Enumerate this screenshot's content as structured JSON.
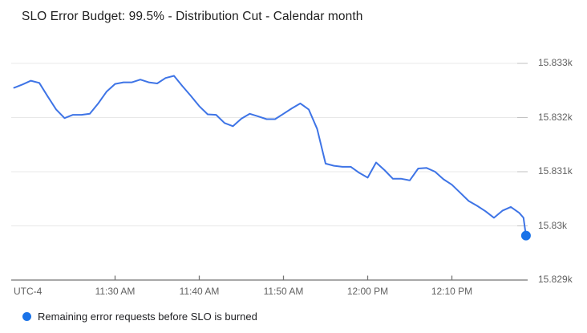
{
  "header": {
    "title": "SLO Error Budget: 99.5% - Distribution Cut - Calendar month"
  },
  "legend": {
    "items": [
      {
        "label": "Remaining error requests before SLO is burned",
        "color": "#1a73e8"
      }
    ]
  },
  "colors": {
    "line": "#3e74e6",
    "end_dot": "#1a73e8",
    "gridline": "#e8e8e8",
    "grid_tick_stub": "#c2c2c2",
    "axis_line": "#757575",
    "axis_tick": "#757575"
  },
  "chart_data": {
    "type": "line",
    "title": "SLO Error Budget: 99.5% - Distribution Cut - Calendar month",
    "x_axis": {
      "timezone_label": "UTC-4",
      "start_time": "11:18 AM",
      "end_time": "12:19 PM",
      "unit": "minutes_after_start",
      "grid": false,
      "ticks": [
        {
          "label": "11:30 AM",
          "minute": 12
        },
        {
          "label": "11:40 AM",
          "minute": 22
        },
        {
          "label": "11:50 AM",
          "minute": 32
        },
        {
          "label": "12:00 PM",
          "minute": 42
        },
        {
          "label": "12:10 PM",
          "minute": 52
        }
      ]
    },
    "y_axis": {
      "min": 15829,
      "max": 15833.25,
      "grid": true,
      "ticks": [
        {
          "label": "15.833k",
          "value": 15833
        },
        {
          "label": "15.832k",
          "value": 15832
        },
        {
          "label": "15.831k",
          "value": 15831
        },
        {
          "label": "15.83k",
          "value": 15830
        },
        {
          "label": "15.829k",
          "value": 15829
        }
      ]
    },
    "series": [
      {
        "name": "Remaining error requests before SLO is burned",
        "end_dot": true,
        "x_minutes": [
          0,
          1,
          2,
          3,
          4,
          5,
          6,
          7,
          8,
          9,
          10,
          11,
          12,
          13,
          14,
          15,
          16,
          17,
          18,
          19,
          20,
          21,
          22,
          23,
          24,
          25,
          26,
          27,
          28,
          29,
          30,
          31,
          32,
          33,
          34,
          35,
          36,
          37,
          38,
          39,
          40,
          41,
          42,
          43,
          44,
          45,
          46,
          47,
          48,
          49,
          50,
          51,
          52,
          53,
          54,
          55,
          56,
          57,
          58,
          59,
          60,
          60.5,
          60.8
        ],
        "values": [
          15832.55,
          15832.61,
          15832.68,
          15832.64,
          15832.39,
          15832.15,
          15831.99,
          15832.05,
          15832.05,
          15832.07,
          15832.26,
          15832.48,
          15832.62,
          15832.65,
          15832.65,
          15832.7,
          15832.65,
          15832.63,
          15832.73,
          15832.77,
          15832.58,
          15832.4,
          15832.21,
          15832.06,
          15832.05,
          15831.9,
          15831.84,
          15831.98,
          15832.07,
          15832.02,
          15831.97,
          15831.97,
          15832.07,
          15832.17,
          15832.26,
          15832.15,
          15831.79,
          15831.15,
          15831.11,
          15831.09,
          15831.09,
          15830.98,
          15830.89,
          15831.17,
          15831.03,
          15830.87,
          15830.87,
          15830.84,
          15831.06,
          15831.07,
          15831.0,
          15830.86,
          15830.76,
          15830.61,
          15830.46,
          15830.37,
          15830.27,
          15830.15,
          15830.28,
          15830.35,
          15830.24,
          15830.15,
          15829.82
        ]
      }
    ]
  }
}
